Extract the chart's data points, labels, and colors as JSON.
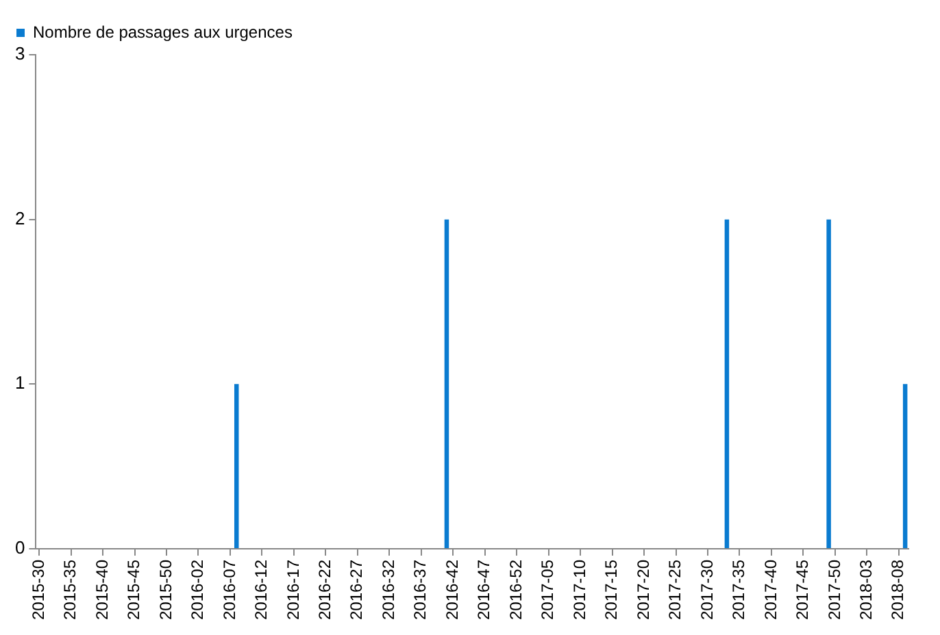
{
  "chart_data": {
    "type": "bar",
    "categories": [
      "2015-30",
      null,
      null,
      null,
      null,
      "2015-35",
      null,
      null,
      null,
      null,
      "2015-40",
      null,
      null,
      null,
      null,
      "2015-45",
      null,
      null,
      null,
      null,
      "2015-50",
      null,
      null,
      null,
      null,
      "2016-02",
      null,
      null,
      null,
      null,
      "2016-07",
      null,
      null,
      null,
      null,
      "2016-12",
      null,
      null,
      null,
      null,
      "2016-17",
      null,
      null,
      null,
      null,
      "2016-22",
      null,
      null,
      null,
      null,
      "2016-27",
      null,
      null,
      null,
      null,
      "2016-32",
      null,
      null,
      null,
      null,
      "2016-37",
      null,
      null,
      null,
      null,
      "2016-42",
      null,
      null,
      null,
      null,
      "2016-47",
      null,
      null,
      null,
      null,
      "2016-52",
      null,
      null,
      null,
      null,
      "2017-05",
      null,
      null,
      null,
      null,
      "2017-10",
      null,
      null,
      null,
      null,
      "2017-15",
      null,
      null,
      null,
      null,
      "2017-20",
      null,
      null,
      null,
      null,
      "2017-25",
      null,
      null,
      null,
      null,
      "2017-30",
      null,
      null,
      null,
      null,
      "2017-35",
      null,
      null,
      null,
      null,
      "2017-40",
      null,
      null,
      null,
      null,
      "2017-45",
      null,
      null,
      null,
      null,
      "2017-50",
      null,
      null,
      null,
      null,
      "2018-03",
      null,
      null,
      null,
      null,
      "2018-08",
      null
    ],
    "series": [
      {
        "name": "Nombre de passages aux urgences",
        "color": "#0a7bd0",
        "values": [
          0,
          0,
          0,
          0,
          0,
          0,
          0,
          0,
          0,
          0,
          0,
          0,
          0,
          0,
          0,
          0,
          0,
          0,
          0,
          0,
          0,
          0,
          0,
          0,
          0,
          0,
          0,
          0,
          0,
          0,
          0,
          1,
          0,
          0,
          0,
          0,
          0,
          0,
          0,
          0,
          0,
          0,
          0,
          0,
          0,
          0,
          0,
          0,
          0,
          0,
          0,
          0,
          0,
          0,
          0,
          0,
          0,
          0,
          0,
          0,
          0,
          0,
          0,
          0,
          2,
          0,
          0,
          0,
          0,
          0,
          0,
          0,
          0,
          0,
          0,
          0,
          0,
          0,
          0,
          0,
          0,
          0,
          0,
          0,
          0,
          0,
          0,
          0,
          0,
          0,
          0,
          0,
          0,
          0,
          0,
          0,
          0,
          0,
          0,
          0,
          0,
          0,
          0,
          0,
          0,
          0,
          0,
          0,
          2,
          0,
          0,
          0,
          0,
          0,
          0,
          0,
          0,
          0,
          0,
          0,
          0,
          0,
          0,
          0,
          2,
          0,
          0,
          0,
          0,
          0,
          0,
          0,
          0,
          0,
          0,
          0,
          1
        ]
      }
    ],
    "ylim": [
      0,
      3
    ],
    "yticks": [
      0,
      1,
      2,
      3
    ],
    "grid": false,
    "legend": "top left"
  }
}
